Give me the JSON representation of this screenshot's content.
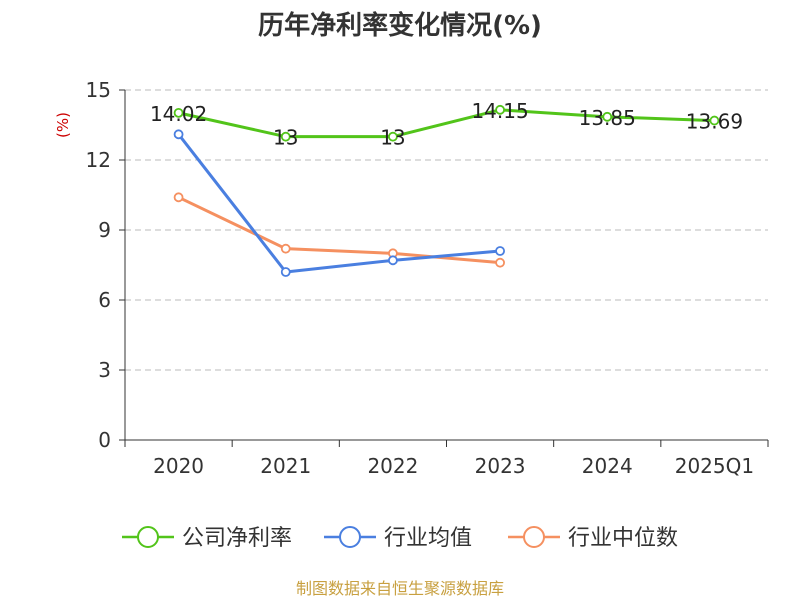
{
  "chart_data": {
    "type": "line",
    "title": "历年净利率变化情况(%)",
    "ylabel": "(%)",
    "xlabel": "",
    "categories": [
      "2020",
      "2021",
      "2022",
      "2023",
      "2024",
      "2025Q1"
    ],
    "ylim": [
      0,
      15
    ],
    "yticks": [
      0,
      3,
      6,
      9,
      12,
      15
    ],
    "grid": true,
    "legend_position": "bottom",
    "series": [
      {
        "name": "公司净利率",
        "color": "#52c41a",
        "values": [
          14.02,
          13,
          13,
          14.15,
          13.85,
          13.69
        ],
        "labels": [
          "14.02",
          "13",
          "13",
          "14.15",
          "13.85",
          "13.69"
        ]
      },
      {
        "name": "行业均值",
        "color": "#4a7fe0",
        "values": [
          13.1,
          7.2,
          7.7,
          8.1,
          null,
          null
        ]
      },
      {
        "name": "行业中位数",
        "color": "#f59060",
        "values": [
          10.4,
          8.2,
          8.0,
          7.6,
          null,
          null
        ]
      }
    ]
  },
  "source": "制图数据来自恒生聚源数据库"
}
